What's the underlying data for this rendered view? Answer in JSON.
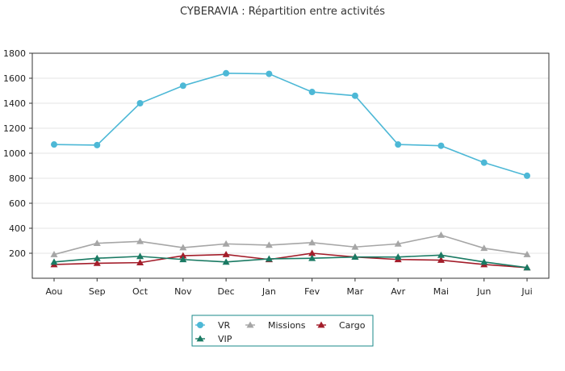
{
  "chart_data": {
    "type": "line",
    "title": "CYBERAVIA : Répartition entre activités",
    "xlabel": "",
    "ylabel": "",
    "categories": [
      "Aou",
      "Sep",
      "Oct",
      "Nov",
      "Dec",
      "Jan",
      "Fev",
      "Mar",
      "Avr",
      "Mai",
      "Jun",
      "Jui"
    ],
    "ylim": [
      0,
      1800
    ],
    "yticks": [
      200,
      400,
      600,
      800,
      1000,
      1200,
      1400,
      1600,
      1800
    ],
    "grid": true,
    "legend_position": "bottom-center",
    "series": [
      {
        "name": "VR",
        "color": "#4db8d6",
        "marker": "circle",
        "values": [
          1070,
          1065,
          1400,
          1540,
          1640,
          1635,
          1490,
          1460,
          1070,
          1060,
          925,
          820
        ]
      },
      {
        "name": "Missions",
        "color": "#a6a6a6",
        "marker": "triangle",
        "values": [
          190,
          280,
          295,
          245,
          275,
          265,
          285,
          250,
          275,
          345,
          240,
          190
        ]
      },
      {
        "name": "Cargo",
        "color": "#a31d2a",
        "marker": "triangle",
        "values": [
          110,
          120,
          125,
          180,
          190,
          150,
          200,
          170,
          150,
          145,
          110,
          85
        ]
      },
      {
        "name": "VIP",
        "color": "#1a7a63",
        "marker": "triangle",
        "values": [
          130,
          160,
          175,
          150,
          130,
          155,
          160,
          170,
          170,
          185,
          130,
          85
        ]
      }
    ]
  }
}
